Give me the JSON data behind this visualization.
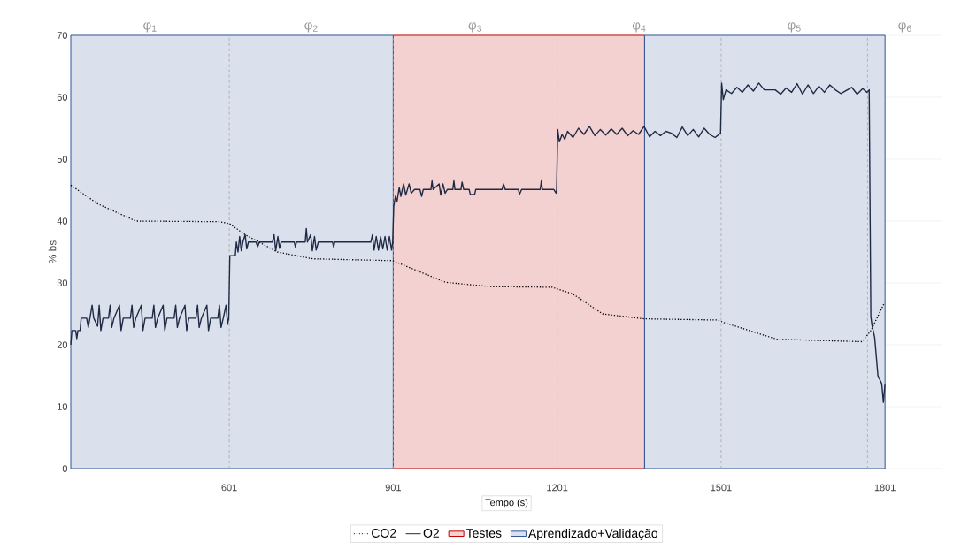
{
  "chart_data": {
    "type": "line",
    "xlabel": "Tempo (s)",
    "ylabel": "% bs",
    "xlim": [
      311,
      1906
    ],
    "ylim": [
      0,
      70
    ],
    "xticks": [
      601,
      901,
      1201,
      1501,
      1801
    ],
    "yticks": [
      0,
      10,
      20,
      30,
      40,
      50,
      60,
      70
    ],
    "grid": "y",
    "legend": "bottom",
    "marker": "none",
    "series": [
      {
        "name": "CO2",
        "color": "#000000",
        "line_style": "dotted",
        "x": [
          311,
          360,
          430,
          582,
          601,
          630,
          689,
          754,
          900,
          997,
          1078,
          1192,
          1230,
          1284,
          1360,
          1495,
          1506,
          1603,
          1759,
          1775,
          1800
        ],
        "values": [
          45.8,
          42.8,
          40.0,
          39.9,
          39.6,
          37.8,
          35.0,
          33.9,
          33.6,
          30.1,
          29.4,
          29.3,
          28.2,
          25.0,
          24.2,
          24.0,
          23.6,
          20.9,
          20.5,
          22.3,
          26.8
        ]
      },
      {
        "name": "O2",
        "color": "#1f2a44",
        "line_style": "solid",
        "x": [
          311,
          313,
          320,
          322,
          324,
          328,
          330,
          340,
          343,
          346,
          350,
          353,
          360,
          363,
          366,
          370,
          380,
          383,
          386,
          390,
          400,
          403,
          407,
          420,
          423,
          426,
          430,
          440,
          443,
          447,
          460,
          463,
          466,
          470,
          480,
          483,
          487,
          500,
          503,
          506,
          510,
          520,
          523,
          527,
          540,
          543,
          546,
          550,
          560,
          563,
          567,
          580,
          583,
          586,
          590,
          595,
          598,
          600,
          602,
          612,
          614,
          617,
          620,
          623,
          626,
          630,
          633,
          636,
          650,
          653,
          656,
          680,
          683,
          686,
          690,
          693,
          696,
          720,
          722,
          724,
          740,
          742,
          744,
          750,
          753,
          757,
          760,
          764,
          790,
          792,
          794,
          860,
          863,
          866,
          870,
          874,
          878,
          882,
          886,
          890,
          894,
          898,
          900,
          902,
          905,
          908,
          912,
          915,
          920,
          924,
          930,
          934,
          940,
          950,
          953,
          956,
          970,
          972,
          974,
          985,
          988,
          992,
          996,
          1000,
          1010,
          1012,
          1014,
          1025,
          1027,
          1030,
          1040,
          1042,
          1050,
          1052,
          1100,
          1103,
          1106,
          1130,
          1132,
          1136,
          1170,
          1172,
          1174,
          1195,
          1199,
          1200,
          1202,
          1205,
          1210,
          1215,
          1220,
          1230,
          1240,
          1250,
          1260,
          1270,
          1280,
          1290,
          1300,
          1310,
          1320,
          1330,
          1340,
          1350,
          1360,
          1370,
          1380,
          1390,
          1400,
          1410,
          1420,
          1430,
          1440,
          1450,
          1460,
          1470,
          1480,
          1490,
          1500,
          1502,
          1505,
          1510,
          1520,
          1530,
          1540,
          1550,
          1560,
          1570,
          1580,
          1600,
          1610,
          1620,
          1630,
          1640,
          1650,
          1660,
          1670,
          1680,
          1690,
          1700,
          1710,
          1720,
          1740,
          1750,
          1760,
          1768,
          1772,
          1775,
          1777,
          1782,
          1788,
          1795,
          1798,
          1801
        ],
        "values": [
          20.0,
          22.3,
          22.3,
          21.0,
          22.3,
          22.3,
          24.3,
          24.3,
          22.8,
          24.3,
          26.4,
          24.3,
          23.0,
          26.4,
          22.3,
          24.3,
          24.3,
          26.4,
          22.8,
          24.3,
          26.4,
          22.3,
          24.3,
          24.3,
          26.4,
          22.8,
          24.3,
          26.4,
          22.3,
          24.3,
          24.3,
          26.4,
          22.8,
          24.3,
          26.4,
          22.3,
          24.3,
          24.3,
          26.4,
          22.8,
          24.3,
          26.4,
          22.3,
          24.3,
          24.3,
          26.4,
          22.8,
          24.3,
          26.4,
          22.3,
          24.3,
          24.3,
          26.4,
          22.8,
          24.3,
          26.4,
          23.3,
          24.3,
          34.4,
          34.4,
          36.6,
          35.0,
          37.5,
          35.2,
          36.6,
          37.8,
          35.5,
          36.6,
          36.6,
          35.8,
          36.6,
          36.6,
          37.8,
          35.2,
          37.5,
          35.6,
          36.6,
          36.6,
          35.8,
          36.6,
          36.6,
          38.8,
          36.6,
          37.8,
          35.2,
          37.5,
          35.3,
          36.6,
          36.6,
          35.8,
          36.6,
          36.6,
          37.8,
          35.3,
          37.5,
          35.3,
          37.5,
          35.5,
          37.5,
          35.3,
          37.5,
          35.3,
          36.6,
          42.4,
          44.0,
          43.2,
          45.4,
          44.0,
          46.0,
          44.2,
          46.0,
          44.5,
          45.1,
          45.1,
          44.0,
          45.1,
          45.1,
          46.5,
          45.1,
          46.0,
          44.2,
          46.0,
          44.5,
          45.1,
          45.1,
          46.5,
          45.1,
          45.1,
          46.3,
          45.1,
          45.1,
          44.3,
          44.3,
          45.1,
          45.1,
          46.0,
          45.1,
          45.1,
          44.3,
          45.1,
          45.1,
          46.5,
          45.1,
          45.1,
          44.5,
          45.1,
          54.8,
          52.8,
          54.0,
          53.2,
          54.5,
          53.5,
          55.0,
          54.0,
          55.3,
          53.8,
          54.8,
          53.9,
          54.9,
          54.0,
          55.0,
          53.8,
          54.6,
          54.0,
          55.3,
          53.6,
          54.5,
          53.8,
          54.5,
          54.2,
          53.5,
          55.2,
          53.8,
          54.8,
          53.6,
          55.0,
          54.0,
          53.5,
          54.2,
          62.3,
          59.6,
          61.2,
          60.6,
          61.6,
          60.8,
          62.0,
          61.0,
          62.3,
          61.2,
          61.2,
          60.5,
          61.5,
          60.8,
          62.2,
          60.5,
          62.0,
          60.6,
          61.8,
          60.8,
          62.0,
          61.2,
          60.6,
          61.6,
          60.5,
          61.4,
          60.8,
          61.2,
          24.6,
          23.2,
          21.2,
          15.0,
          13.7,
          10.7,
          13.7
        ]
      }
    ],
    "bands": [
      {
        "axis": "x",
        "from": 901,
        "to": 1361,
        "label": "Testes",
        "color": "#c00000"
      },
      {
        "axis": "x",
        "from": 311,
        "to": 901,
        "label": "Aprendizado+Validação",
        "color": "#2f5597"
      },
      {
        "axis": "x",
        "from": 1361,
        "to": 1801,
        "label": null,
        "color": "#2f5597"
      }
    ],
    "ref_lines": [
      {
        "axis": "x",
        "value": 601,
        "color": "#a6a6a6",
        "line_style": "dashed"
      },
      {
        "axis": "x",
        "value": 901,
        "color": "#a6a6a6",
        "line_style": "dashed"
      },
      {
        "axis": "x",
        "value": 1201,
        "color": "#a6a6a6",
        "line_style": "dashed"
      },
      {
        "axis": "x",
        "value": 1501,
        "color": "#a6a6a6",
        "line_style": "dashed"
      },
      {
        "axis": "x",
        "value": 1769,
        "color": "#a6a6a6",
        "line_style": "dashed"
      }
    ],
    "annotations": [
      "φ$_{1}$",
      "φ$_{2}$",
      "φ$_{3}$",
      "φ$_{4}$",
      "φ$_{5}$",
      "φ$_{6}$"
    ]
  }
}
